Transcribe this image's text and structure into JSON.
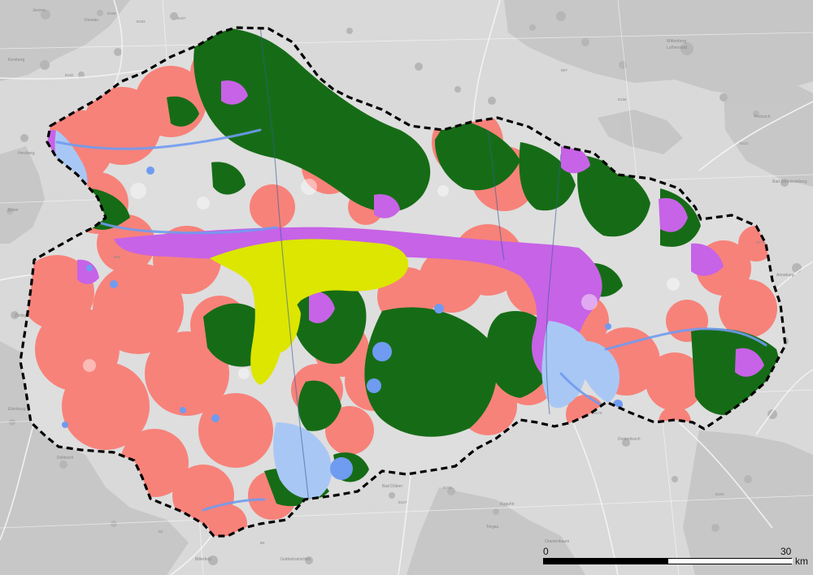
{
  "map": {
    "scale_bar": {
      "start_label": "0",
      "end_label": "30",
      "unit": "km"
    },
    "labels": {
      "roads": [
        "B185",
        "B183",
        "B187",
        "B182",
        "B87",
        "B188",
        "B112",
        "B170",
        "B178",
        "B184",
        "B169",
        "B107",
        "B2",
        "B6",
        "B96"
      ],
      "places": [
        "Jessen",
        "Dessau",
        "Wittenberg",
        "Lutherstadt",
        "Dommitzsch",
        "Torgau",
        "Bad Düben",
        "Bitterfeld",
        "Gräfenhainichen",
        "Kemberg",
        "Elster",
        "Herzberg",
        "Bad Schmiedeberg",
        "Pretzsch",
        "Annaburg",
        "Delitzsch",
        "Eilenburg",
        "Zörbig",
        "Raguhn",
        "Oranienbaum"
      ]
    },
    "colors": {
      "basemap": "#d9d9d9",
      "settlement": "#bdbdbd",
      "salmon_zone": "#f7827a",
      "forest_zone": "#166c16",
      "purple_zone": "#c763e6",
      "yellow_zone": "#dce600",
      "light_blue_zone": "#a9c7f5",
      "blue_water": "#6f9bf0",
      "boundary": "#000000"
    },
    "icons": [
      "dashed-boundary-icon",
      "scale-bar-icon"
    ]
  }
}
